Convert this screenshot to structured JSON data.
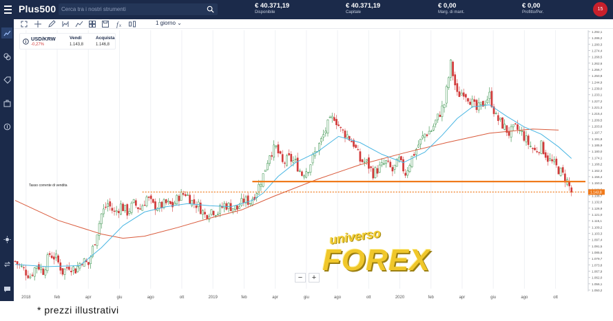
{
  "header": {
    "brand": "Plus500",
    "search_placeholder": "Cerca tra i nostri strumenti",
    "stats": [
      {
        "value": "€ 40.371,19",
        "label": "Disponibile"
      },
      {
        "value": "€ 40.371,19",
        "label": "Capitale"
      },
      {
        "value": "€ 0,00",
        "label": "Marg. di mant."
      },
      {
        "value": "€ 0,00",
        "label": "Profitto/Per."
      }
    ],
    "notification_count": "15"
  },
  "toolbar": {
    "timeframe": "1 giorno"
  },
  "instrument": {
    "symbol": "USD/KRW",
    "change": "-0,27%",
    "sell_label": "Vendi",
    "sell_value": "1.143,8",
    "buy_label": "Acquista",
    "buy_value": "1.146,8"
  },
  "chart_data": {
    "type": "candlestick",
    "current_rate_label": "Tasso corrente di vendita",
    "current_rate": "1.143,8",
    "x_tick_labels": [
      "2018",
      "feb",
      "apr",
      "giu",
      "ago",
      "ott",
      "2019",
      "feb",
      "apr",
      "giu",
      "ago",
      "ott",
      "2020",
      "feb",
      "apr",
      "giu",
      "ago",
      "ott"
    ],
    "y_tick_labels": [
      "1.292,1",
      "1.286,2",
      "1.280,3",
      "1.274,4",
      "1.268,5",
      "1.262,6",
      "1.256,7",
      "1.250,8",
      "1.244,9",
      "1.239,0",
      "1.233,1",
      "1.227,2",
      "1.221,3",
      "1.215,4",
      "1.209,5",
      "1.203,6",
      "1.197,7",
      "1.191,8",
      "1.185,9",
      "1.180,0",
      "1.174,1",
      "1.168,2",
      "1.162,3",
      "1.156,4",
      "1.150,5",
      "1.144,6",
      "1.138,7",
      "1.132,8",
      "1.126,9",
      "1.121,0",
      "1.115,1",
      "1.109,2",
      "1.103,3",
      "1.097,4",
      "1.091,5",
      "1.085,6",
      "1.079,7",
      "1.073,8",
      "1.067,9",
      "1.062,0",
      "1.056,1",
      "1.050,2"
    ],
    "ylim": [
      1048,
      1294
    ],
    "close_path": [
      [
        0,
        1074
      ],
      [
        4,
        1066
      ],
      [
        7,
        1060
      ],
      [
        10,
        1071
      ],
      [
        13,
        1065
      ],
      [
        16,
        1081
      ],
      [
        19,
        1077
      ],
      [
        22,
        1064
      ],
      [
        25,
        1070
      ],
      [
        28,
        1066
      ],
      [
        31,
        1075
      ],
      [
        34,
        1071
      ],
      [
        37,
        1094
      ],
      [
        40,
        1119
      ],
      [
        43,
        1129
      ],
      [
        46,
        1120
      ],
      [
        49,
        1127
      ],
      [
        52,
        1121
      ],
      [
        55,
        1129
      ],
      [
        58,
        1124
      ],
      [
        61,
        1135
      ],
      [
        64,
        1127
      ],
      [
        67,
        1126
      ],
      [
        70,
        1129
      ],
      [
        73,
        1127
      ],
      [
        76,
        1136
      ],
      [
        79,
        1139
      ],
      [
        82,
        1131
      ],
      [
        85,
        1127
      ],
      [
        88,
        1118
      ],
      [
        91,
        1123
      ],
      [
        94,
        1121
      ],
      [
        97,
        1128
      ],
      [
        100,
        1126
      ],
      [
        103,
        1124
      ],
      [
        106,
        1132
      ],
      [
        109,
        1131
      ],
      [
        112,
        1141
      ],
      [
        115,
        1156
      ],
      [
        118,
        1177
      ],
      [
        121,
        1182
      ],
      [
        124,
        1167
      ],
      [
        127,
        1172
      ],
      [
        130,
        1168
      ],
      [
        133,
        1157
      ],
      [
        136,
        1163
      ],
      [
        139,
        1177
      ],
      [
        142,
        1189
      ],
      [
        145,
        1204
      ],
      [
        148,
        1212
      ],
      [
        151,
        1199
      ],
      [
        154,
        1194
      ],
      [
        157,
        1186
      ],
      [
        160,
        1170
      ],
      [
        163,
        1168
      ],
      [
        166,
        1158
      ],
      [
        169,
        1163
      ],
      [
        172,
        1168
      ],
      [
        175,
        1160
      ],
      [
        178,
        1170
      ],
      [
        181,
        1158
      ],
      [
        184,
        1173
      ],
      [
        187,
        1185
      ],
      [
        190,
        1195
      ],
      [
        193,
        1199
      ],
      [
        196,
        1211
      ],
      [
        199,
        1224
      ],
      [
        202,
        1262
      ],
      [
        205,
        1232
      ],
      [
        208,
        1236
      ],
      [
        211,
        1228
      ],
      [
        214,
        1218
      ],
      [
        217,
        1224
      ],
      [
        220,
        1232
      ],
      [
        223,
        1211
      ],
      [
        226,
        1204
      ],
      [
        229,
        1196
      ],
      [
        232,
        1201
      ],
      [
        235,
        1196
      ],
      [
        238,
        1186
      ],
      [
        241,
        1179
      ],
      [
        244,
        1184
      ],
      [
        247,
        1172
      ],
      [
        250,
        1166
      ],
      [
        253,
        1159
      ],
      [
        256,
        1150
      ],
      [
        258,
        1140
      ]
    ],
    "ma_fast": [
      [
        0,
        1071
      ],
      [
        15,
        1069
      ],
      [
        30,
        1070
      ],
      [
        40,
        1087
      ],
      [
        50,
        1108
      ],
      [
        60,
        1121
      ],
      [
        70,
        1126
      ],
      [
        80,
        1129
      ],
      [
        90,
        1127
      ],
      [
        100,
        1126
      ],
      [
        110,
        1132
      ],
      [
        115,
        1139
      ],
      [
        122,
        1155
      ],
      [
        130,
        1168
      ],
      [
        140,
        1178
      ],
      [
        150,
        1193
      ],
      [
        160,
        1187
      ],
      [
        170,
        1176
      ],
      [
        180,
        1168
      ],
      [
        190,
        1178
      ],
      [
        198,
        1194
      ],
      [
        205,
        1210
      ],
      [
        212,
        1221
      ],
      [
        220,
        1223
      ],
      [
        228,
        1212
      ],
      [
        236,
        1202
      ],
      [
        244,
        1195
      ],
      [
        252,
        1183
      ],
      [
        258,
        1172
      ]
    ],
    "ma_slow": [
      [
        0,
        1132
      ],
      [
        20,
        1113
      ],
      [
        40,
        1100
      ],
      [
        50,
        1096
      ],
      [
        60,
        1098
      ],
      [
        75,
        1106
      ],
      [
        90,
        1115
      ],
      [
        105,
        1123
      ],
      [
        120,
        1136
      ],
      [
        140,
        1152
      ],
      [
        160,
        1166
      ],
      [
        180,
        1177
      ],
      [
        200,
        1187
      ],
      [
        220,
        1196
      ],
      [
        240,
        1200
      ],
      [
        252,
        1199
      ]
    ],
    "support_level": 1150,
    "resistance_dotted": 1140,
    "x_range": [
      0,
      260
    ]
  },
  "colors": {
    "up": "#2a8a3e",
    "down": "#d23b3b",
    "ma_fast": "#49b6e3",
    "ma_slow": "#d9593a",
    "level": "#f07a1b"
  },
  "footnote": "* prezzi illustrativi",
  "watermark": {
    "top": "universo",
    "main": "FOREX"
  }
}
